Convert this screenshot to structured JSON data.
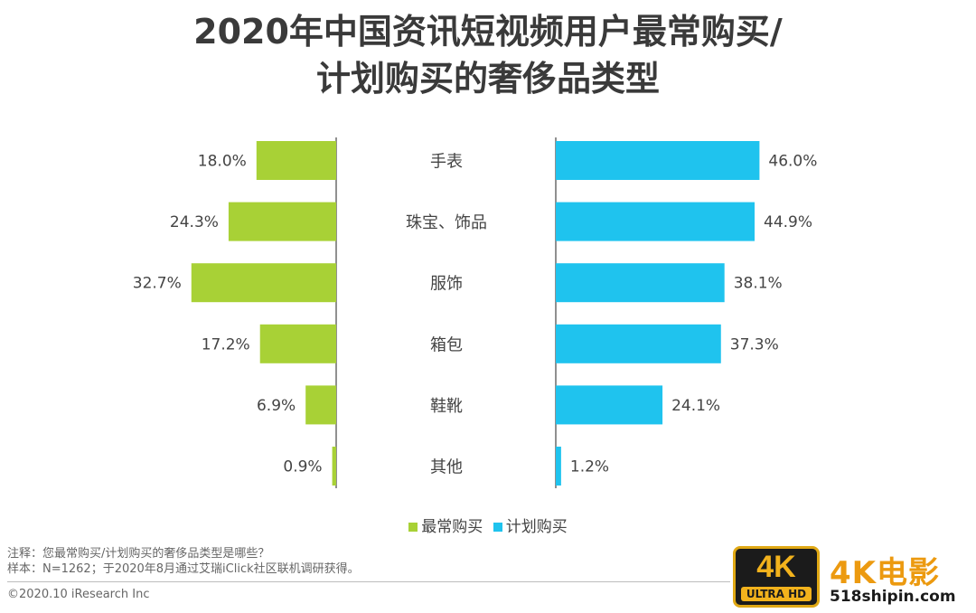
{
  "title_line1": "2020年中国资讯短视频用户最常购买/",
  "title_line2": "计划购买的奢侈品类型",
  "chart_data": {
    "type": "bar",
    "orientation": "horizontal-butterfly",
    "categories": [
      "手表",
      "珠宝、饰品",
      "服饰",
      "箱包",
      "鞋靴",
      "其他"
    ],
    "series": [
      {
        "name": "最常购买",
        "values": [
          18.0,
          24.3,
          32.7,
          17.2,
          6.9,
          0.9
        ],
        "labels": [
          "18.0%",
          "24.3%",
          "32.7%",
          "17.2%",
          "6.9%",
          "0.9%"
        ],
        "color": "#a8d136",
        "side": "left"
      },
      {
        "name": "计划购买",
        "values": [
          46.0,
          44.9,
          38.1,
          37.3,
          24.1,
          1.2
        ],
        "labels": [
          "46.0%",
          "44.9%",
          "38.1%",
          "37.3%",
          "24.1%",
          "1.2%"
        ],
        "color": "#1fc3ee",
        "side": "right"
      }
    ],
    "legend_position": "bottom-center",
    "grid": false
  },
  "notes": {
    "line1": "注释：您最常购买/计划购买的奢侈品类型是哪些？",
    "line2": "样本：N=1262；于2020年8月通过艾瑞iClick社区联机调研获得。"
  },
  "copyright": "©2020.10 iResearch Inc",
  "watermark": {
    "badge_big": "4K",
    "badge_small": "ULTRA HD",
    "title": "4K电影",
    "url": "518shipin.com"
  }
}
